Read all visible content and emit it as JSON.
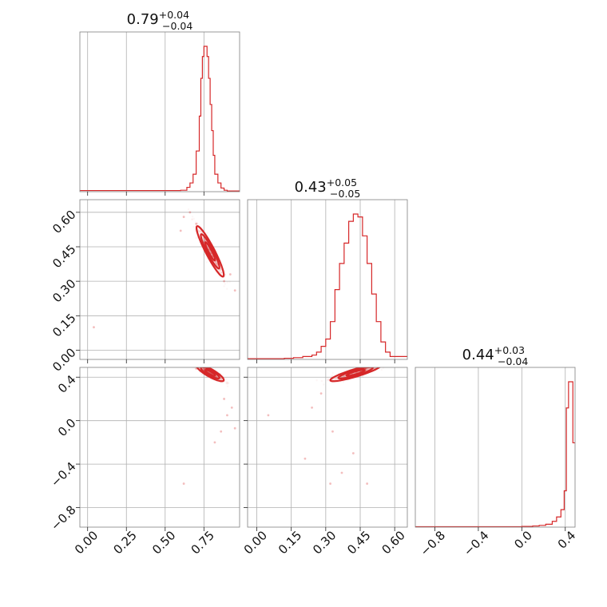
{
  "chart_data": {
    "type": "corner",
    "color": "#d62728",
    "grid": true,
    "parameters": [
      {
        "range": [
          -0.05,
          0.98
        ],
        "ticks": [
          0.0,
          0.25,
          0.5,
          0.75
        ],
        "tick_labels": [
          "0.00",
          "0.25",
          "0.50",
          "0.75"
        ],
        "title": {
          "median": "0.79",
          "plus": "+0.04",
          "minus": "−0.04"
        }
      },
      {
        "range": [
          -0.04,
          0.655
        ],
        "ticks": [
          0.0,
          0.15,
          0.3,
          0.45,
          0.6
        ],
        "tick_labels": [
          "0.00",
          "0.15",
          "0.30",
          "0.45",
          "0.60"
        ],
        "title": {
          "median": "0.43",
          "plus": "+0.05",
          "minus": "−0.05"
        }
      },
      {
        "range": [
          -0.98,
          0.49
        ],
        "ticks": [
          -0.8,
          -0.4,
          0.0,
          0.4
        ],
        "tick_labels": [
          "−0.8",
          "−0.4",
          "0.0",
          "0.4"
        ],
        "title": {
          "median": "0.44",
          "plus": "+0.03",
          "minus": "−0.04"
        }
      }
    ],
    "histograms": [
      {
        "x": [
          -0.05,
          0.6,
          0.64,
          0.66,
          0.68,
          0.7,
          0.72,
          0.73,
          0.74,
          0.75,
          0.76,
          0.77,
          0.78,
          0.79,
          0.8,
          0.81,
          0.82,
          0.84,
          0.86,
          0.88,
          0.9,
          0.98
        ],
        "y": [
          0.008,
          0.01,
          0.03,
          0.06,
          0.12,
          0.28,
          0.52,
          0.78,
          0.93,
          1.0,
          1.0,
          0.93,
          0.78,
          0.6,
          0.42,
          0.25,
          0.12,
          0.06,
          0.025,
          0.01,
          0.005,
          0.003
        ]
      },
      {
        "x": [
          -0.04,
          0.12,
          0.16,
          0.2,
          0.24,
          0.26,
          0.28,
          0.3,
          0.32,
          0.34,
          0.36,
          0.38,
          0.4,
          0.42,
          0.44,
          0.46,
          0.48,
          0.5,
          0.52,
          0.54,
          0.56,
          0.58,
          0.655
        ],
        "y": [
          0.005,
          0.008,
          0.012,
          0.02,
          0.03,
          0.05,
          0.09,
          0.14,
          0.26,
          0.48,
          0.66,
          0.8,
          0.95,
          1.0,
          0.98,
          0.85,
          0.66,
          0.45,
          0.26,
          0.12,
          0.05,
          0.02,
          0.005
        ]
      },
      {
        "x": [
          -0.98,
          0.0,
          0.1,
          0.16,
          0.22,
          0.28,
          0.32,
          0.36,
          0.39,
          0.41,
          0.43,
          0.45,
          0.47,
          0.49
        ],
        "y": [
          0.003,
          0.005,
          0.008,
          0.012,
          0.02,
          0.04,
          0.07,
          0.12,
          0.25,
          0.82,
          1.0,
          1.0,
          0.58,
          0.06
        ]
      }
    ],
    "correlations": [
      {
        "row": 1,
        "col": 0,
        "center": [
          0.79,
          0.43
        ],
        "sigma": [
          0.04,
          0.05
        ],
        "rho": -0.93,
        "scatter_points": [
          [
            0.62,
            0.58
          ],
          [
            0.66,
            0.6
          ],
          [
            0.7,
            0.55
          ],
          [
            0.88,
            0.3
          ],
          [
            0.92,
            0.33
          ],
          [
            0.04,
            0.1
          ],
          [
            0.95,
            0.26
          ],
          [
            0.6,
            0.52
          ]
        ]
      },
      {
        "row": 2,
        "col": 0,
        "center": [
          0.79,
          0.44
        ],
        "sigma": [
          0.04,
          0.035
        ],
        "rho": -0.85,
        "scatter_points": [
          [
            0.62,
            -0.58
          ],
          [
            0.86,
            -0.1
          ],
          [
            0.9,
            0.05
          ],
          [
            0.95,
            -0.07
          ],
          [
            0.82,
            -0.2
          ],
          [
            0.88,
            0.2
          ],
          [
            0.7,
            0.48
          ],
          [
            0.93,
            0.12
          ]
        ]
      },
      {
        "row": 2,
        "col": 1,
        "center": [
          0.43,
          0.44
        ],
        "sigma": [
          0.05,
          0.035
        ],
        "rho": 0.88,
        "scatter_points": [
          [
            0.05,
            0.05
          ],
          [
            0.21,
            -0.35
          ],
          [
            0.32,
            -0.58
          ],
          [
            0.48,
            -0.58
          ],
          [
            0.42,
            -0.3
          ],
          [
            0.33,
            -0.1
          ],
          [
            0.28,
            0.25
          ],
          [
            0.24,
            0.12
          ],
          [
            0.37,
            -0.48
          ]
        ]
      }
    ]
  }
}
